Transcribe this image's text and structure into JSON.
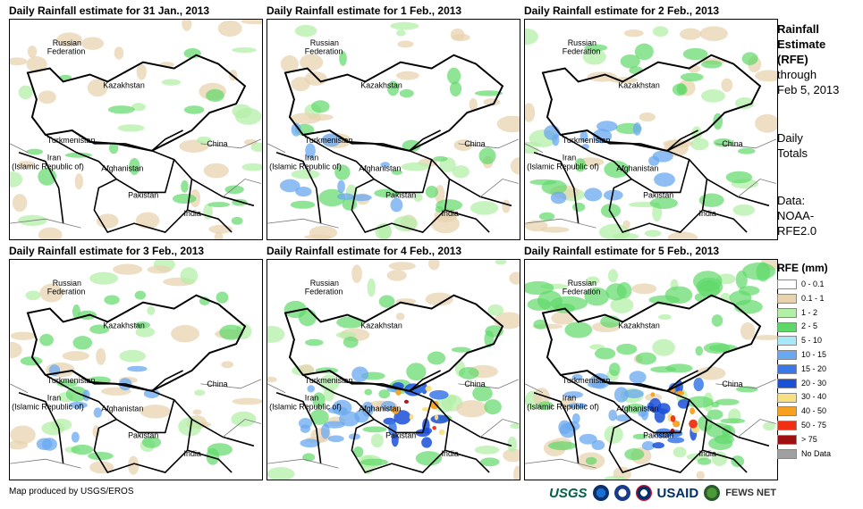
{
  "panels": [
    {
      "title": "Daily Rainfall estimate for 31 Jan., 2013",
      "level": 1
    },
    {
      "title": "Daily Rainfall estimate for 1 Feb., 2013",
      "level": 2
    },
    {
      "title": "Daily Rainfall estimate for 2 Feb., 2013",
      "level": 3
    },
    {
      "title": "Daily Rainfall estimate for 3 Feb., 2013",
      "level": 2
    },
    {
      "title": "Daily Rainfall estimate for 4 Feb., 2013",
      "level": 4
    },
    {
      "title": "Daily Rainfall estimate for 5 Feb., 2013",
      "level": 5
    }
  ],
  "map_labels": {
    "russia_1": "Russian",
    "russia_2": "Federation",
    "kazakhstan": "Kazakhstan",
    "turkmenistan": "Turkmenistan",
    "iran_1": "Iran",
    "iran_2": "(Islamic Republic of)",
    "afghanistan": "Afghanistan",
    "china": "China",
    "pakistan": "Pakistan",
    "india": "India"
  },
  "side": {
    "title_1": "Rainfall",
    "title_2": "Estimate",
    "title_3": "(RFE)",
    "through_1": "through",
    "through_2": "Feb 5, 2013",
    "daily_1": "Daily",
    "daily_2": "Totals",
    "data_1": "Data:",
    "data_2": "NOAA-",
    "data_3": "RFE2.0"
  },
  "legend": {
    "title": "RFE (mm)",
    "items": [
      {
        "label": "0 - 0.1",
        "color": "#ffffff"
      },
      {
        "label": "0.1 - 1",
        "color": "#e8d3b0"
      },
      {
        "label": "1 - 2",
        "color": "#b4efa8"
      },
      {
        "label": "2 - 5",
        "color": "#5fd86a"
      },
      {
        "label": "5 - 10",
        "color": "#a8e8f8"
      },
      {
        "label": "10 - 15",
        "color": "#6aa8f0"
      },
      {
        "label": "15 - 20",
        "color": "#3a78e8"
      },
      {
        "label": "20 - 30",
        "color": "#1a4fd8"
      },
      {
        "label": "30 - 40",
        "color": "#f8e080"
      },
      {
        "label": "40 - 50",
        "color": "#f8a020"
      },
      {
        "label": "50 - 75",
        "color": "#f03010"
      },
      {
        "label": "> 75",
        "color": "#a01010"
      },
      {
        "label": "No Data",
        "color": "#a0a0a0"
      }
    ]
  },
  "footer": {
    "credit": "Map produced by USGS/EROS",
    "logo_usgs": "USGS",
    "logo_usaid": "USAID",
    "logo_fews": "FEWS NET"
  }
}
